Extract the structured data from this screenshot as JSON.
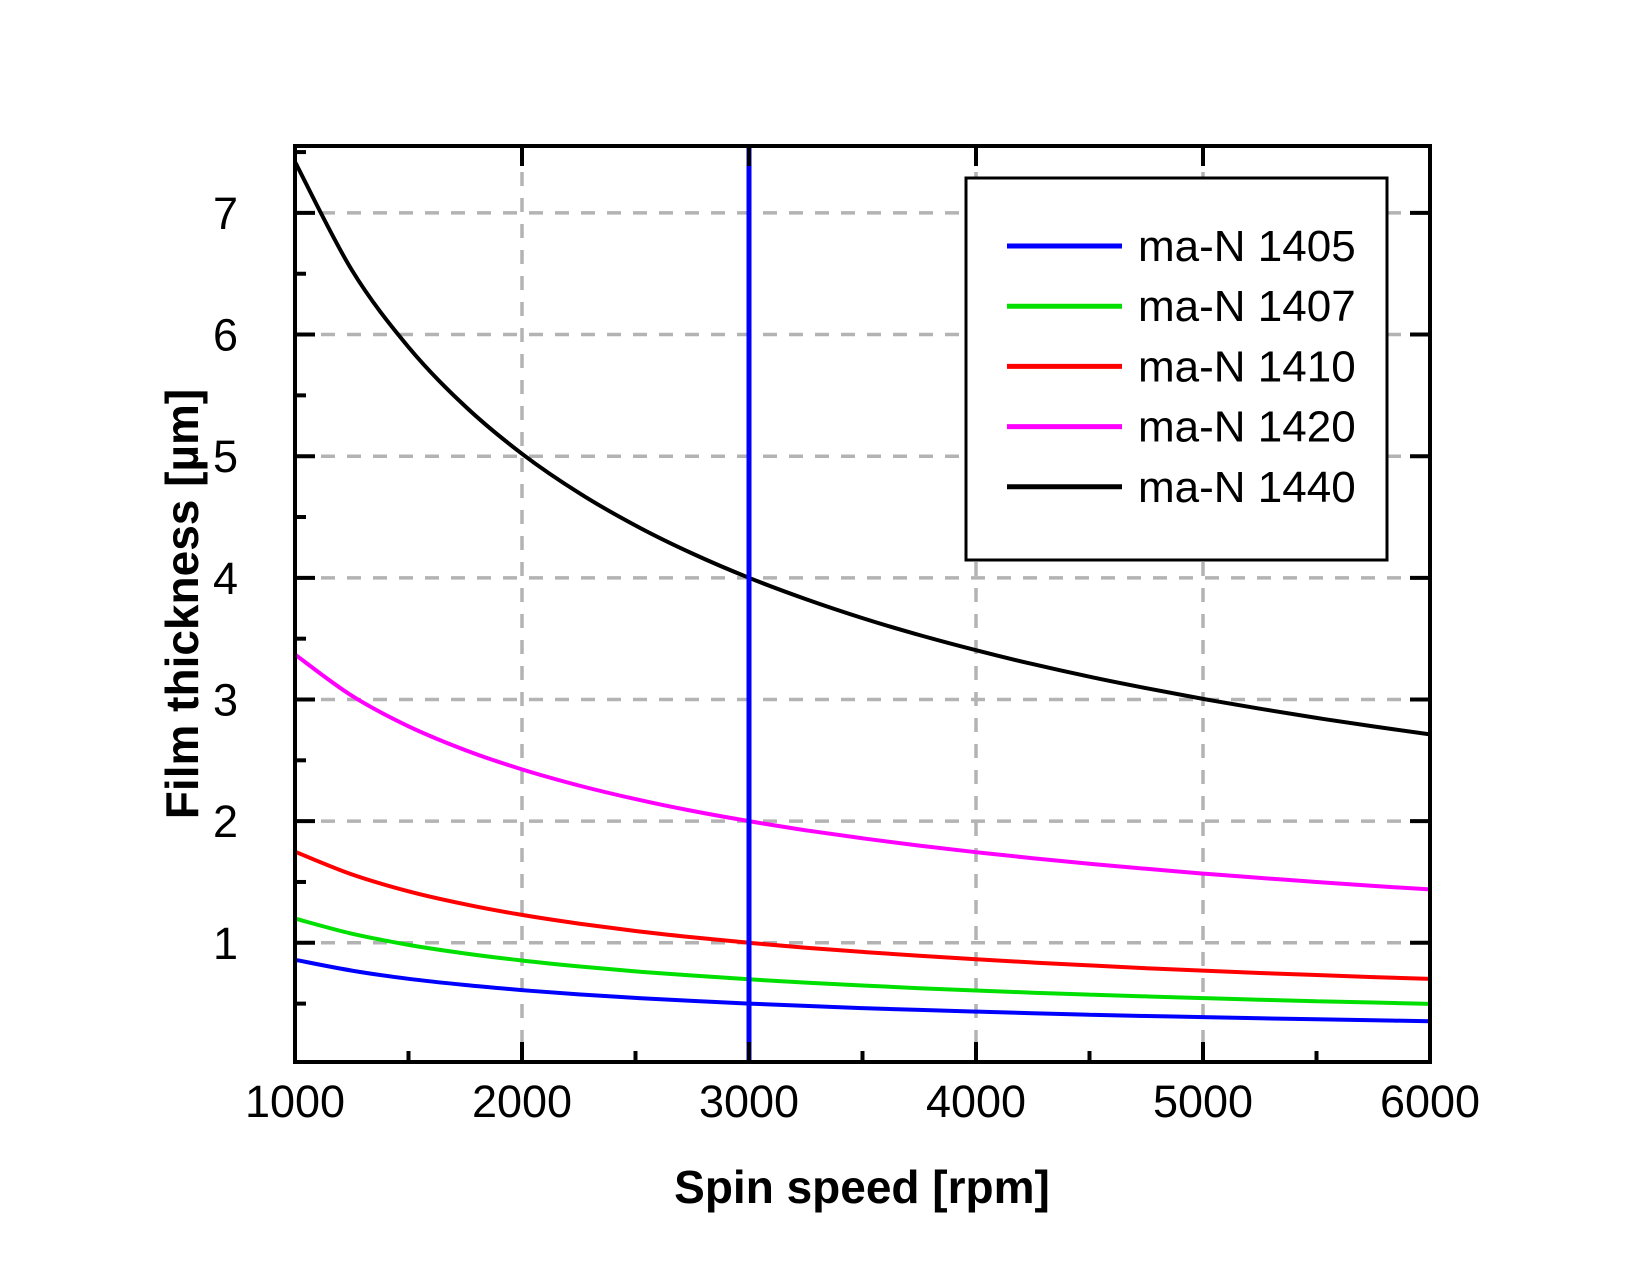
{
  "chart_data": {
    "type": "line",
    "title": "",
    "xlabel": "Spin speed [rpm]",
    "ylabel": "Film thickness [µm]",
    "xlim": [
      1000,
      6000
    ],
    "ylim": [
      0.02,
      7.55
    ],
    "grid": "on",
    "grid_color": "#b3b3b3",
    "axis_color": "#000000",
    "background_color": "#ffffff",
    "legend_position": "top-right",
    "x_major_ticks": [
      1000,
      2000,
      3000,
      4000,
      5000,
      6000
    ],
    "x_minor_ticks": [
      1500,
      2500,
      3500,
      4500,
      5500
    ],
    "y_major_ticks": [
      1,
      2,
      3,
      4,
      5,
      6,
      7
    ],
    "y_minor_ticks": [
      0.5,
      1.5,
      2.5,
      3.5,
      4.5,
      5.5,
      6.5,
      7.5
    ],
    "x_gridlines": [
      2000,
      3000,
      4000,
      5000
    ],
    "y_gridlines": [
      1,
      2,
      3,
      4,
      5,
      6,
      7
    ],
    "reference_line": {
      "x": 3000,
      "color": "#0000ff",
      "note": "vertical line at 3000 rpm"
    },
    "x": [
      1000,
      1250,
      1500,
      1750,
      2000,
      2250,
      2500,
      2750,
      3000,
      3250,
      3500,
      3750,
      4000,
      4250,
      4500,
      4750,
      5000,
      5250,
      5500,
      5750,
      6000
    ],
    "series": [
      {
        "name": "ma-N 1405",
        "color": "#0000ff",
        "values": [
          0.86,
          0.771,
          0.704,
          0.653,
          0.611,
          0.576,
          0.547,
          0.522,
          0.5,
          0.481,
          0.463,
          0.448,
          0.434,
          0.421,
          0.409,
          0.398,
          0.389,
          0.379,
          0.371,
          0.363,
          0.355
        ]
      },
      {
        "name": "ma-N 1407",
        "color": "#00e000",
        "values": [
          1.199,
          1.075,
          0.983,
          0.912,
          0.854,
          0.806,
          0.765,
          0.731,
          0.7,
          0.673,
          0.649,
          0.627,
          0.608,
          0.59,
          0.574,
          0.559,
          0.545,
          0.532,
          0.52,
          0.509,
          0.498
        ]
      },
      {
        "name": "ma-N 1410",
        "color": "#ff0000",
        "values": [
          1.749,
          1.562,
          1.423,
          1.316,
          1.229,
          1.158,
          1.097,
          1.045,
          1.0,
          0.96,
          0.925,
          0.893,
          0.864,
          0.838,
          0.814,
          0.791,
          0.771,
          0.752,
          0.735,
          0.718,
          0.703
        ]
      },
      {
        "name": "ma-N 1420",
        "color": "#ff00ff",
        "values": [
          3.37,
          3.031,
          2.78,
          2.584,
          2.425,
          2.293,
          2.181,
          2.084,
          2.0,
          1.925,
          1.859,
          1.799,
          1.745,
          1.695,
          1.65,
          1.608,
          1.569,
          1.533,
          1.5,
          1.468,
          1.439
        ]
      },
      {
        "name": "ma-N 1440",
        "color": "#000000",
        "values": [
          7.42,
          6.531,
          5.897,
          5.409,
          5.02,
          4.699,
          4.43,
          4.2,
          4.0,
          3.825,
          3.669,
          3.53,
          3.405,
          3.291,
          3.187,
          3.093,
          3.005,
          2.924,
          2.849,
          2.779,
          2.713
        ]
      }
    ]
  }
}
